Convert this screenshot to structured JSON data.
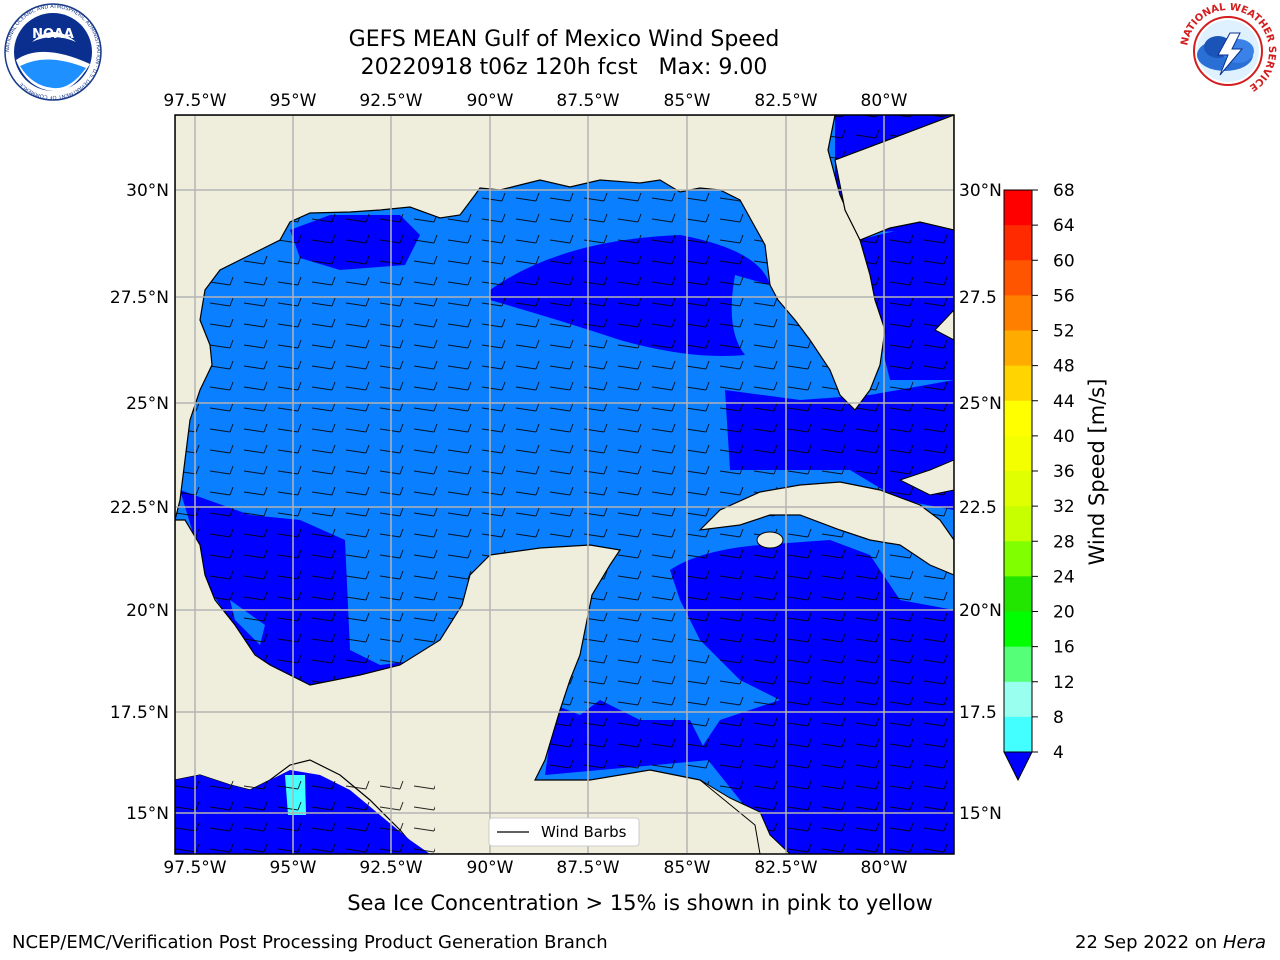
{
  "title_line1": "GEFS MEAN Gulf of Mexico Wind Speed",
  "title_line2": "20220918 t06z 120h fcst   Max: 9.00",
  "caption": "Sea Ice Concentration > 15% is shown in pink to yellow",
  "footer_left": "NCEP/EMC/Verification Post Processing Product Generation Branch",
  "footer_date": "22 Sep 2022 on ",
  "footer_machine": "Hera",
  "logo_left": {
    "name": "NOAA",
    "ring_text": "NATIONAL OCEANIC AND ATMOSPHERIC ADMINISTRATION · U.S. DEPARTMENT OF COMMERCE"
  },
  "logo_right": {
    "ring_text": "NATIONAL WEATHER SERVICE"
  },
  "colors": {
    "land": "#efeedc",
    "ocean_dark": "#0000ff",
    "ocean_mid": "#0a7fff"
  },
  "lon_ticks": [
    "97.5°W",
    "95°W",
    "92.5°W",
    "90°W",
    "87.5°W",
    "85°W",
    "82.5°W",
    "80°W"
  ],
  "lat_ticks_left": [
    "30°N",
    "27.5°N",
    "25°N",
    "22.5°N",
    "20°N",
    "17.5°N",
    "15°N"
  ],
  "lat_ticks_right": [
    "30°N",
    "27.5",
    "25°N",
    "22.5",
    "20°N",
    "17.5",
    "15°N"
  ],
  "legend_label": "Wind Barbs",
  "colorbar": {
    "label": "Wind Speed [m/s]",
    "ticks": [
      "68",
      "64",
      "60",
      "56",
      "52",
      "48",
      "44",
      "40",
      "36",
      "32",
      "28",
      "24",
      "20",
      "16",
      "12",
      "8",
      "4"
    ],
    "bin_colors": [
      "#ff0000",
      "#ff2a00",
      "#ff5500",
      "#ff8000",
      "#ffab00",
      "#ffd400",
      "#ffff00",
      "#f4ff00",
      "#e0ff00",
      "#c8ff00",
      "#7fff00",
      "#22e600",
      "#00ff00",
      "#55ff77",
      "#99ffee",
      "#44ffff",
      "#00e6ff",
      "#0080ff",
      "#0000ff"
    ]
  }
}
